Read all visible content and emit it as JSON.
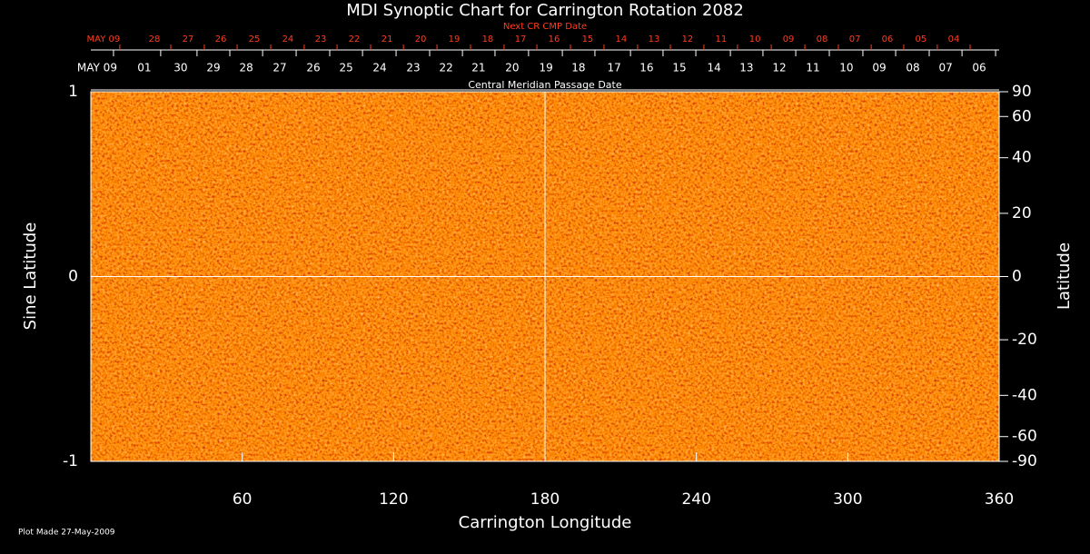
{
  "chart_data": {
    "type": "synoptic-map",
    "title": "MDI Synoptic Chart for Carrington Rotation 2082",
    "top_axis_red_label": "Next CR CMP Date",
    "top_axis_label": "Central Meridian Passage Date",
    "x_label": "Carrington Longitude",
    "y_label": "Sine Latitude",
    "y2_label": "Latitude",
    "footnote": "Plot Made 27-May-2009",
    "xlim": [
      0,
      360
    ],
    "xticks": [
      60,
      120,
      180,
      240,
      300,
      360
    ],
    "ylim": [
      -1,
      1
    ],
    "yticks": [
      -1,
      0,
      1
    ],
    "y2lim": [
      -90,
      90
    ],
    "y2scale": "sine",
    "y2ticks": [
      -90,
      -60,
      -40,
      -20,
      0,
      20,
      40,
      60,
      90
    ],
    "crosshair": true,
    "map_color": "#ff5a00",
    "cmp_dates": {
      "labels": [
        "MAY 09",
        "01",
        "30",
        "29",
        "28",
        "27",
        "26",
        "25",
        "24",
        "23",
        "22",
        "21",
        "20",
        "19",
        "18",
        "17",
        "16",
        "15",
        "14",
        "13",
        "12",
        "11",
        "10",
        "09",
        "08",
        "07",
        "06"
      ],
      "x": [
        2.5,
        21.2,
        35.6,
        48.6,
        61.6,
        74.9,
        88.2,
        101.2,
        114.5,
        127.8,
        140.8,
        153.7,
        167,
        180.4,
        193.3,
        207.4,
        220.3,
        233.3,
        247,
        259.9,
        272.9,
        286.2,
        299.5,
        312.5,
        325.8,
        338.8,
        352.1
      ]
    },
    "next_cmp_dates": {
      "color": "#ff3c1e",
      "labels": [
        "MAY 09",
        "28",
        "27",
        "26",
        "25",
        "24",
        "23",
        "22",
        "21",
        "20",
        "19",
        "18",
        "17",
        "16",
        "15",
        "14",
        "13",
        "12",
        "11",
        "10",
        "09",
        "08",
        "07",
        "06",
        "05",
        "04"
      ],
      "x": [
        5,
        25.2,
        38.5,
        51.5,
        64.8,
        78.1,
        91.1,
        104.4,
        117.4,
        130.7,
        144,
        157.3,
        170.3,
        183.6,
        196.9,
        210.2,
        223.2,
        236.5,
        249.8,
        263.2,
        276.5,
        289.8,
        302.8,
        315.7,
        329,
        342
      ]
    }
  }
}
